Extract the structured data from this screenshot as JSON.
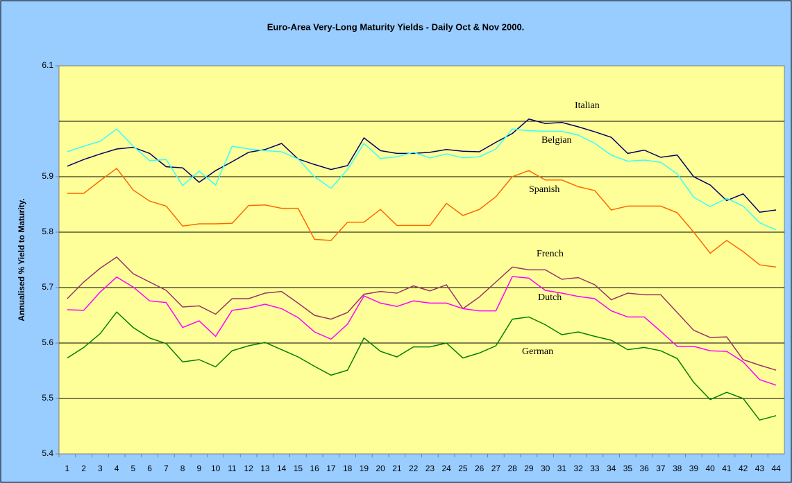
{
  "chart_data": {
    "type": "line",
    "title": "Euro-Area Very-Long Maturity Yields - Daily Oct & Nov 2000.",
    "y_label": "Annualised % Yield to Maturity.",
    "categories": [
      "1",
      "2",
      "3",
      "4",
      "5",
      "6",
      "7",
      "8",
      "9",
      "10",
      "11",
      "12",
      "13",
      "14",
      "15",
      "16",
      "17",
      "18",
      "19",
      "20",
      "21",
      "22",
      "23",
      "24",
      "25",
      "26",
      "27",
      "28",
      "29",
      "30",
      "31",
      "32",
      "33",
      "34",
      "35",
      "36",
      "37",
      "38",
      "39",
      "40",
      "41",
      "42",
      "43",
      "44"
    ],
    "ylim": [
      5.4,
      6.1
    ],
    "yticks": [
      5.4,
      5.5,
      5.6,
      5.7,
      5.8,
      5.9,
      6.1
    ],
    "gridlines": [
      5.5,
      5.6,
      5.7,
      5.8,
      5.9,
      6.0
    ],
    "series": [
      {
        "name": "Italian",
        "color": "#000066",
        "values": [
          5.919,
          5.931,
          5.941,
          5.95,
          5.953,
          5.942,
          5.918,
          5.916,
          5.89,
          5.911,
          5.927,
          5.944,
          5.949,
          5.96,
          5.932,
          5.922,
          5.913,
          5.92,
          5.97,
          5.947,
          5.942,
          5.942,
          5.944,
          5.949,
          5.946,
          5.945,
          5.962,
          5.978,
          6.004,
          5.996,
          5.998,
          5.99,
          5.981,
          5.971,
          5.942,
          5.948,
          5.935,
          5.939,
          5.9,
          5.885,
          5.857,
          5.869,
          5.836,
          5.84
        ]
      },
      {
        "name": "Belgian",
        "color": "#33ffff",
        "values": [
          5.945,
          5.955,
          5.964,
          5.986,
          5.955,
          5.929,
          5.931,
          5.884,
          5.91,
          5.885,
          5.955,
          5.95,
          5.947,
          5.945,
          5.932,
          5.9,
          5.879,
          5.913,
          5.96,
          5.933,
          5.936,
          5.944,
          5.934,
          5.941,
          5.934,
          5.936,
          5.95,
          5.986,
          5.983,
          5.982,
          5.982,
          5.975,
          5.96,
          5.939,
          5.928,
          5.93,
          5.926,
          5.905,
          5.863,
          5.846,
          5.861,
          5.847,
          5.817,
          5.804
        ]
      },
      {
        "name": "Spanish",
        "color": "#ff6600",
        "values": [
          5.87,
          5.87,
          5.893,
          5.915,
          5.876,
          5.856,
          5.847,
          5.811,
          5.815,
          5.815,
          5.816,
          5.848,
          5.849,
          5.843,
          5.843,
          5.787,
          5.785,
          5.818,
          5.818,
          5.841,
          5.812,
          5.812,
          5.812,
          5.852,
          5.83,
          5.841,
          5.864,
          5.9,
          5.911,
          5.894,
          5.894,
          5.882,
          5.875,
          5.84,
          5.847,
          5.847,
          5.847,
          5.835,
          5.8,
          5.762,
          5.785,
          5.765,
          5.741,
          5.737
        ]
      },
      {
        "name": "French",
        "color": "#993366",
        "values": [
          5.68,
          5.71,
          5.735,
          5.755,
          5.725,
          5.71,
          5.695,
          5.665,
          5.667,
          5.652,
          5.68,
          5.68,
          5.69,
          5.693,
          5.672,
          5.65,
          5.643,
          5.655,
          5.688,
          5.693,
          5.69,
          5.703,
          5.694,
          5.705,
          5.662,
          5.683,
          5.71,
          5.737,
          5.732,
          5.732,
          5.715,
          5.718,
          5.705,
          5.678,
          5.69,
          5.687,
          5.687,
          5.655,
          5.623,
          5.61,
          5.611,
          5.57,
          5.56,
          5.551
        ]
      },
      {
        "name": "Dutch",
        "color": "#ff00ff",
        "values": [
          5.66,
          5.659,
          5.692,
          5.719,
          5.701,
          5.676,
          5.673,
          5.628,
          5.64,
          5.612,
          5.659,
          5.663,
          5.67,
          5.662,
          5.646,
          5.62,
          5.607,
          5.634,
          5.685,
          5.672,
          5.666,
          5.676,
          5.672,
          5.672,
          5.662,
          5.658,
          5.658,
          5.72,
          5.717,
          5.695,
          5.69,
          5.684,
          5.68,
          5.658,
          5.647,
          5.647,
          5.621,
          5.594,
          5.594,
          5.586,
          5.585,
          5.566,
          5.534,
          5.524
        ]
      },
      {
        "name": "German",
        "color": "#008000",
        "values": [
          5.573,
          5.592,
          5.617,
          5.656,
          5.628,
          5.609,
          5.599,
          5.566,
          5.57,
          5.557,
          5.586,
          5.595,
          5.601,
          5.588,
          5.575,
          5.558,
          5.542,
          5.551,
          5.609,
          5.585,
          5.575,
          5.593,
          5.593,
          5.6,
          5.573,
          5.582,
          5.595,
          5.643,
          5.647,
          5.633,
          5.615,
          5.62,
          5.612,
          5.605,
          5.588,
          5.592,
          5.586,
          5.572,
          5.529,
          5.498,
          5.511,
          5.5,
          5.461,
          5.469
        ]
      }
    ]
  }
}
